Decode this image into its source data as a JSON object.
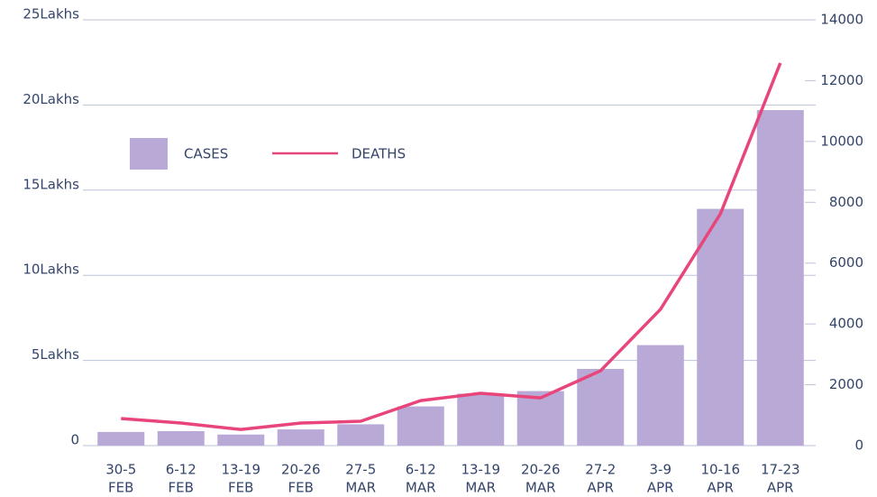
{
  "chart_data": {
    "type": "bar-line",
    "categories": [
      [
        "30-5",
        "FEB"
      ],
      [
        "6-12",
        "FEB"
      ],
      [
        "13-19",
        "FEB"
      ],
      [
        "20-26",
        "FEB"
      ],
      [
        "27-5",
        "MAR"
      ],
      [
        "6-12",
        "MAR"
      ],
      [
        "13-19",
        "MAR"
      ],
      [
        "20-26",
        "MAR"
      ],
      [
        "27-2",
        "APR"
      ],
      [
        "3-9",
        "APR"
      ],
      [
        "10-16",
        "APR"
      ],
      [
        "17-23",
        "APR"
      ]
    ],
    "series": [
      {
        "name": "CASES",
        "type": "bar",
        "color": "#b8a9d6",
        "values": [
          0.8,
          0.85,
          0.65,
          0.95,
          1.25,
          2.3,
          3.05,
          3.2,
          4.5,
          5.9,
          13.9,
          19.7
        ]
      },
      {
        "name": "DEATHS",
        "type": "line",
        "axis": "y2",
        "color": "#e8457a",
        "values": [
          890,
          740,
          530,
          740,
          800,
          1480,
          1720,
          1570,
          2460,
          4480,
          7620,
          12580
        ]
      }
    ],
    "ylim": [
      0,
      25
    ],
    "yticks": [
      0,
      {
        "value": 5,
        "label": "5Lakhs"
      },
      {
        "value": 10,
        "label": "10Lakhs"
      },
      {
        "value": 15,
        "label": "15Lakhs"
      },
      {
        "value": 20,
        "label": "20Lakhs"
      },
      {
        "value": 25,
        "label": "25Lakhs"
      }
    ],
    "y2lim": [
      0,
      14000
    ],
    "y2ticks": [
      0,
      2000,
      4000,
      6000,
      8000,
      10000,
      12000,
      14000
    ],
    "grid": true
  }
}
